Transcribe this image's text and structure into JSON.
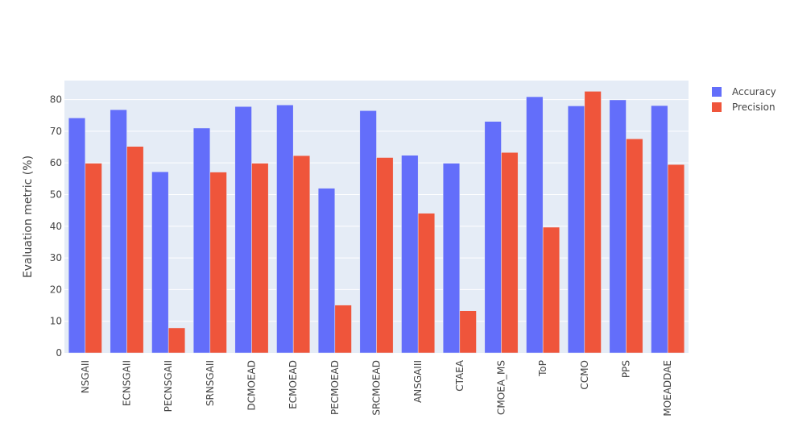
{
  "colors": {
    "plot_background": "#E5ECF6",
    "grid": "#ffffff",
    "accuracy": "#636EFA",
    "precision": "#EF553B",
    "text": "#444444"
  },
  "chart_data": {
    "type": "bar",
    "title": "",
    "xlabel": "",
    "ylabel": "Evaluation metric (%)",
    "ylim": [
      0,
      86
    ],
    "yticks": [
      0,
      10,
      20,
      30,
      40,
      50,
      60,
      70,
      80
    ],
    "grid": true,
    "legend_position": "top-right",
    "categories": [
      "NSGAII",
      "ECNSGAII",
      "PECNSGAII",
      "SRNSGAII",
      "DCMOEAD",
      "ECMOEAD",
      "PECMOEAD",
      "SRCMOEAD",
      "ANSGAIII",
      "CTAEA",
      "CMOEA_MS",
      "ToP",
      "CCMO",
      "PPS",
      "MOEADDAE"
    ],
    "series": [
      {
        "name": "Accuracy",
        "values": [
          74.2,
          76.8,
          57.2,
          71.0,
          77.8,
          78.3,
          52.0,
          76.5,
          62.4,
          59.9,
          73.1,
          80.9,
          78.0,
          79.9,
          78.1
        ]
      },
      {
        "name": "Precision",
        "values": [
          59.9,
          65.2,
          7.9,
          57.1,
          59.9,
          62.3,
          15.1,
          61.7,
          44.1,
          13.3,
          63.3,
          39.7,
          82.6,
          67.6,
          59.5
        ]
      }
    ]
  }
}
